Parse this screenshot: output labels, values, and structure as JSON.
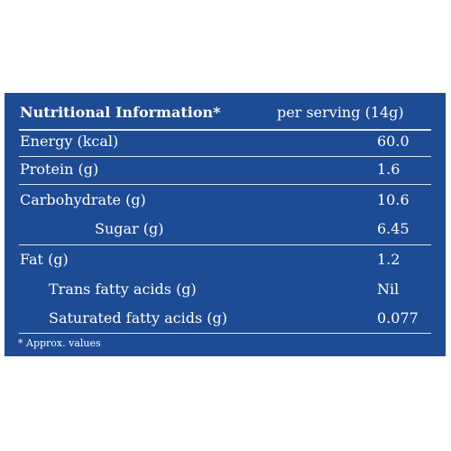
{
  "label": {
    "title": "Nutritional Information*",
    "serving": "per serving (14g)",
    "rows": [
      {
        "name": "Energy (kcal)",
        "value": "60.0"
      },
      {
        "name": "Protein (g)",
        "value": "1.6"
      },
      {
        "name": "Carbohydrate (g)",
        "value": "10.6"
      },
      {
        "name": "Sugar (g)",
        "value": "6.45"
      },
      {
        "name": "Fat (g)",
        "value": "1.2"
      },
      {
        "name": "Trans fatty acids (g)",
        "value": "Nil"
      },
      {
        "name": "Saturated fatty acids (g)",
        "value": "0.077"
      }
    ],
    "footnote": "* Approx. values"
  },
  "colors": {
    "background": "#1d4b94",
    "text": "#ffffff"
  }
}
